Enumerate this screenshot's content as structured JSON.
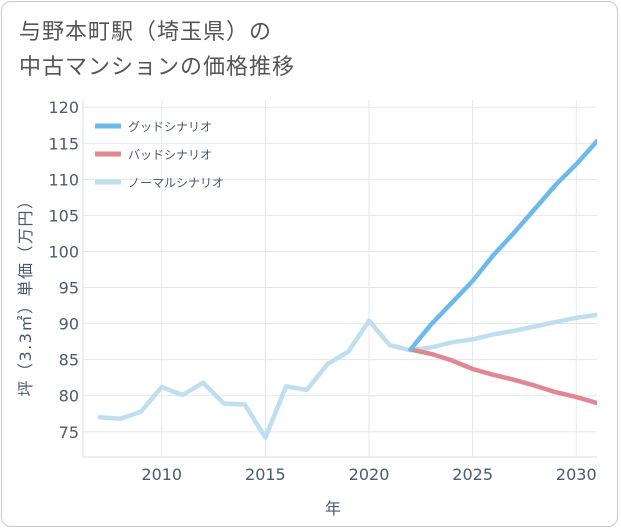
{
  "title": {
    "line1": "与野本町駅（埼玉県）の",
    "line2": "中古マンションの価格推移"
  },
  "chart_data": {
    "type": "line",
    "xlabel": "年",
    "ylabel": "坪（3.3㎡）単価（万円）",
    "xlim": [
      2006.2,
      2031
    ],
    "ylim": [
      71.5,
      121
    ],
    "x_ticks": [
      2010,
      2015,
      2020,
      2025,
      2030
    ],
    "y_ticks": [
      75,
      80,
      85,
      90,
      95,
      100,
      105,
      110,
      115,
      120
    ],
    "grid": true,
    "legend_position": "top-left",
    "series": [
      {
        "name": "グッドシナリオ",
        "color": "#6cb9ea",
        "x": [
          2022,
          2023,
          2024,
          2025,
          2026,
          2027,
          2028,
          2029,
          2030,
          2031
        ],
        "y": [
          86.4,
          89.9,
          92.9,
          95.9,
          99.5,
          102.6,
          105.9,
          109.2,
          112.1,
          115.3
        ]
      },
      {
        "name": "バッドシナリオ",
        "color": "#e08791",
        "x": [
          2022,
          2023,
          2024,
          2025,
          2026,
          2027,
          2028,
          2029,
          2030,
          2031
        ],
        "y": [
          86.4,
          85.8,
          84.9,
          83.7,
          82.9,
          82.2,
          81.4,
          80.5,
          79.8,
          79.0
        ]
      },
      {
        "name": "ノーマルシナリオ",
        "color": "#bfdff0",
        "x": [
          2007,
          2008,
          2009,
          2010,
          2011,
          2012,
          2013,
          2014,
          2015,
          2016,
          2017,
          2018,
          2019,
          2020,
          2021,
          2022,
          2023,
          2024,
          2025,
          2026,
          2027,
          2028,
          2029,
          2030,
          2031
        ],
        "y": [
          77.0,
          76.8,
          77.8,
          81.2,
          80.1,
          81.8,
          78.9,
          78.8,
          74.2,
          81.3,
          80.8,
          84.4,
          86.1,
          90.4,
          87.0,
          86.3,
          86.7,
          87.4,
          87.8,
          88.5,
          89.0,
          89.6,
          90.2,
          90.8,
          91.2
        ]
      }
    ]
  }
}
